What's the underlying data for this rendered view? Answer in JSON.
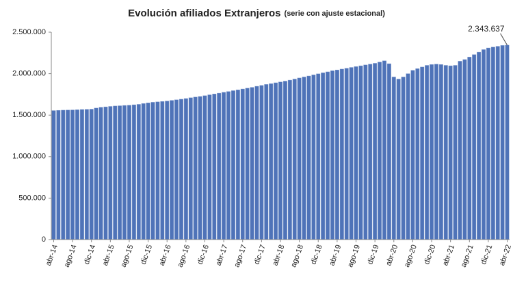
{
  "chart_data": {
    "type": "bar",
    "title": "Evolución afiliados Extranjeros",
    "subtitle": "(serie con ajuste estacional)",
    "color": "#4f73b8",
    "categories": [
      "abr-14",
      null,
      null,
      null,
      "ago-14",
      null,
      null,
      null,
      "dic-14",
      null,
      null,
      null,
      "abr-15",
      null,
      null,
      null,
      "ago-15",
      null,
      null,
      null,
      "dic-15",
      null,
      null,
      null,
      "abr-16",
      null,
      null,
      null,
      "ago-16",
      null,
      null,
      null,
      "dic-16",
      null,
      null,
      null,
      "abr-17",
      null,
      null,
      null,
      "ago-17",
      null,
      null,
      null,
      "dic-17",
      null,
      null,
      null,
      "abr-18",
      null,
      null,
      null,
      "ago-18",
      null,
      null,
      null,
      "dic-18",
      null,
      null,
      null,
      "abr-19",
      null,
      null,
      null,
      "ago-19",
      null,
      null,
      null,
      "dic-19",
      null,
      null,
      null,
      "abr-20",
      null,
      null,
      null,
      "ago-20",
      null,
      null,
      null,
      "dic-20",
      null,
      null,
      null,
      "abr-21",
      null,
      null,
      null,
      "ago-21",
      null,
      null,
      null,
      "dic-21",
      null,
      null,
      null,
      "abr-22"
    ],
    "values": [
      1555000,
      1558000,
      1560000,
      1562000,
      1563000,
      1565000,
      1568000,
      1570000,
      1572000,
      1585000,
      1595000,
      1600000,
      1605000,
      1610000,
      1613000,
      1617000,
      1620000,
      1625000,
      1630000,
      1640000,
      1648000,
      1655000,
      1660000,
      1665000,
      1670000,
      1678000,
      1685000,
      1692000,
      1700000,
      1710000,
      1718000,
      1725000,
      1735000,
      1745000,
      1755000,
      1765000,
      1775000,
      1785000,
      1795000,
      1805000,
      1815000,
      1825000,
      1835000,
      1848000,
      1858000,
      1870000,
      1880000,
      1890000,
      1900000,
      1910000,
      1922000,
      1935000,
      1948000,
      1960000,
      1972000,
      1985000,
      1998000,
      2010000,
      2022000,
      2035000,
      2045000,
      2055000,
      2065000,
      2075000,
      2085000,
      2095000,
      2105000,
      2115000,
      2125000,
      2140000,
      2155000,
      2120000,
      1960000,
      1935000,
      1960000,
      2000000,
      2040000,
      2060000,
      2080000,
      2100000,
      2110000,
      2115000,
      2110000,
      2100000,
      2095000,
      2100000,
      2150000,
      2170000,
      2200000,
      2230000,
      2260000,
      2290000,
      2310000,
      2320000,
      2330000,
      2340000,
      2343637
    ],
    "value_labels": [
      null,
      null,
      null,
      null,
      null,
      null,
      null,
      null,
      null,
      null,
      null,
      null,
      null,
      null,
      null,
      null,
      null,
      null,
      null,
      null,
      null,
      null,
      null,
      null,
      null,
      null,
      null,
      null,
      null,
      null,
      null,
      null,
      null,
      null,
      null,
      null,
      null,
      null,
      null,
      null,
      null,
      null,
      null,
      null,
      null,
      null,
      null,
      null,
      null,
      null,
      null,
      null,
      null,
      null,
      null,
      null,
      null,
      null,
      null,
      null,
      null,
      null,
      null,
      null,
      null,
      null,
      null,
      null,
      null,
      null,
      null,
      null,
      null,
      null,
      null,
      null,
      null,
      null,
      null,
      null,
      null,
      null,
      null,
      null,
      null,
      null,
      null,
      null,
      null,
      null,
      null,
      null,
      null,
      null,
      null,
      null,
      "2.343.637"
    ],
    "ylim": [
      0,
      2500000
    ],
    "yticks": [
      0,
      {
        "value": 500000,
        "label": "500.000"
      },
      {
        "value": 1000000,
        "label": "1.000.000"
      },
      {
        "value": 1500000,
        "label": "1.500.000"
      },
      {
        "value": 2000000,
        "label": "2.000.000"
      },
      {
        "value": 2500000,
        "label": "2.500.000"
      }
    ],
    "grid": false
  }
}
